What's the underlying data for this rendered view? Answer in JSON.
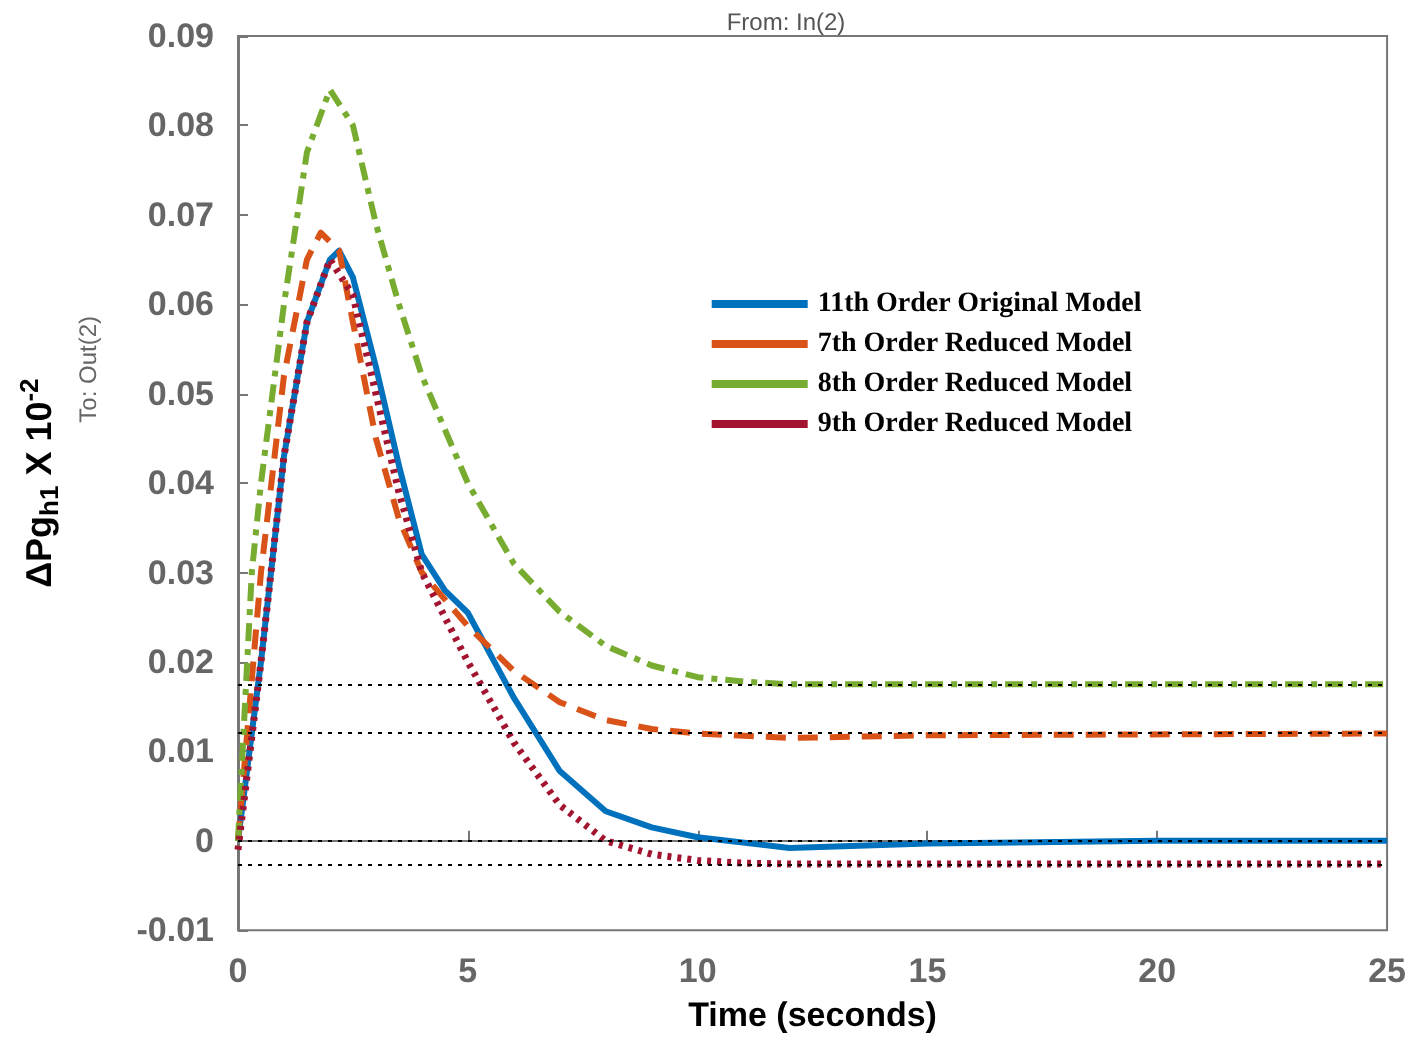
{
  "chart_data": {
    "type": "line",
    "title": "From: In(2)",
    "xlabel": "Time (seconds)",
    "ylabel": "ΔPg$_{h1}$ X 10$^{-2}$",
    "annotations": [
      "To: Out(2)"
    ],
    "xlim": [
      0,
      25
    ],
    "xticks": [
      0,
      5,
      10,
      15,
      20,
      25
    ],
    "ylim": [
      -0.01,
      0.09
    ],
    "yticks": [
      -0.01,
      0,
      0.01,
      0.02,
      0.03,
      0.04,
      0.05,
      0.06,
      0.07,
      0.08,
      0.09
    ],
    "grid": false,
    "legend": "right",
    "marker": "none",
    "ref_lines": [
      {
        "axis": "y",
        "value": 0.0175,
        "color": "#000000",
        "line_style": "dotted"
      },
      {
        "axis": "y",
        "value": 0.012,
        "color": "#000000",
        "line_style": "dotted"
      },
      {
        "axis": "y",
        "value": 0,
        "color": "#000000",
        "line_style": "dotted"
      },
      {
        "axis": "y",
        "value": -0.0026,
        "color": "#000000",
        "line_style": "dotted"
      }
    ],
    "series": [
      {
        "name": "11th Order Original Model",
        "color": "#0072bd",
        "line_style": "solid",
        "x": [
          0,
          0.5,
          1,
          1.5,
          2,
          2.2,
          2.5,
          3,
          3.5,
          4,
          4.5,
          5,
          6,
          7,
          8,
          9,
          10,
          12,
          15,
          20,
          25
        ],
        "values": [
          0,
          0.02,
          0.043,
          0.058,
          0.065,
          0.066,
          0.063,
          0.053,
          0.042,
          0.032,
          0.028,
          0.0255,
          0.016,
          0.0078,
          0.0033,
          0.0015,
          0.0004,
          -0.0008,
          -0.0003,
          0,
          0
        ]
      },
      {
        "name": "7th Order Reduced Model",
        "color": "#d95319",
        "line_style": "dashed",
        "x": [
          0,
          0.5,
          1,
          1.5,
          1.8,
          2.2,
          2.5,
          3,
          3.5,
          4,
          5,
          6,
          7,
          8,
          9,
          10,
          12,
          15,
          25
        ],
        "values": [
          0,
          0.03,
          0.052,
          0.065,
          0.068,
          0.066,
          0.058,
          0.045,
          0.036,
          0.03,
          0.024,
          0.019,
          0.0155,
          0.0135,
          0.0125,
          0.012,
          0.0115,
          0.0118,
          0.012
        ]
      },
      {
        "name": "8th Order Reduced Model",
        "color": "#77ac30",
        "line_style": "dashdot",
        "x": [
          0,
          0.3,
          0.5,
          1,
          1.5,
          2,
          2.5,
          3,
          3.5,
          4,
          5,
          6,
          7,
          8,
          9,
          10,
          11,
          12,
          25
        ],
        "values": [
          0,
          0.03,
          0.04,
          0.06,
          0.077,
          0.084,
          0.08,
          0.069,
          0.06,
          0.052,
          0.04,
          0.031,
          0.0256,
          0.0218,
          0.0196,
          0.0183,
          0.0178,
          0.0175,
          0.0175
        ]
      },
      {
        "name": "9th Order Reduced Model",
        "color": "#a2142f",
        "line_style": "dotted",
        "x": [
          0,
          0.5,
          1,
          1.5,
          2,
          2.5,
          3,
          3.5,
          4,
          5,
          6,
          7,
          8,
          9,
          10,
          11,
          12,
          25
        ],
        "values": [
          -0.001,
          0.02,
          0.043,
          0.058,
          0.065,
          0.061,
          0.05,
          0.039,
          0.03,
          0.02,
          0.011,
          0.004,
          0,
          -0.0015,
          -0.0022,
          -0.0025,
          -0.0026,
          -0.0026
        ]
      }
    ]
  }
}
